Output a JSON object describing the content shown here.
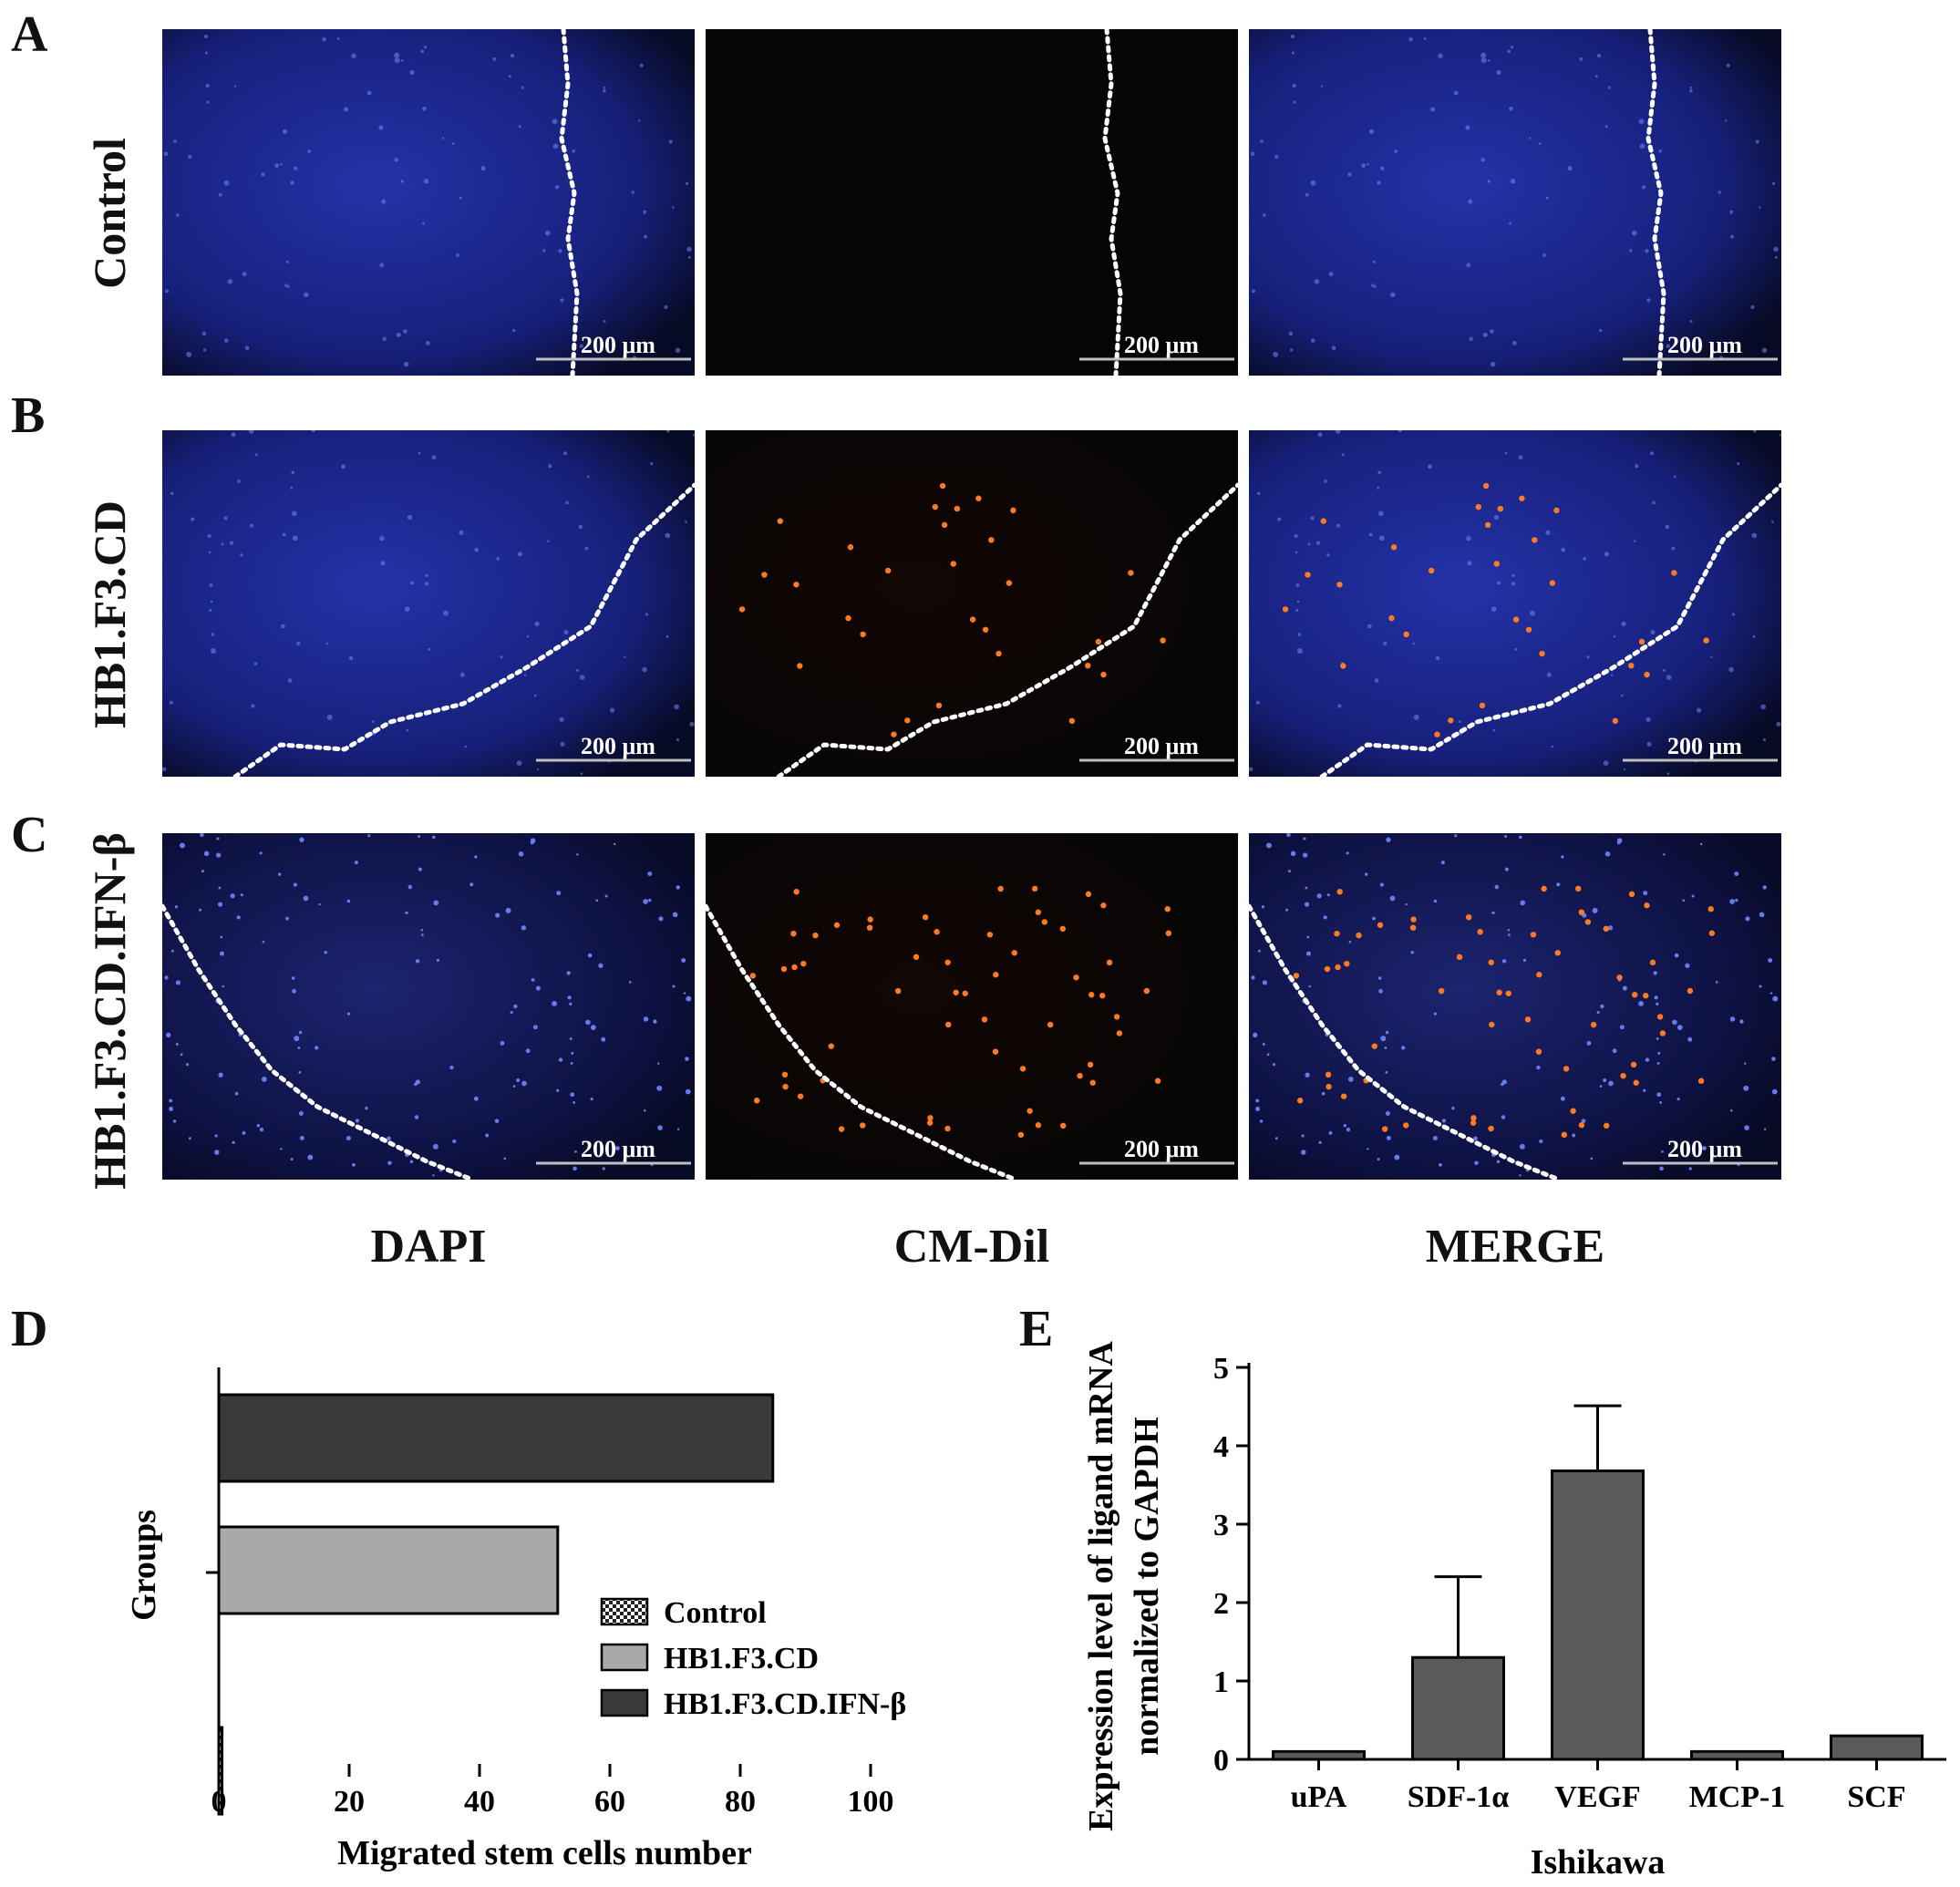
{
  "panels": {
    "A": "A",
    "B": "B",
    "C": "C",
    "D": "D",
    "E": "E"
  },
  "rows": [
    {
      "label": "Control",
      "cells": 0
    },
    {
      "label": "HB1.F3.CD",
      "cells": 30
    },
    {
      "label": "HB1.F3.CD.IFN-β",
      "cells": 60
    }
  ],
  "columns": [
    "DAPI",
    "CM-Dil",
    "MERGE"
  ],
  "scale_bar": "200 μm",
  "colors": {
    "dapi": "#1a2a9a",
    "dil": "#ff6a1a",
    "bar_dark": "#3a3a3a",
    "bar_light": "#a9a9a9",
    "bar_e": "#5a5a5a"
  },
  "chart_data": [
    {
      "type": "bar",
      "orientation": "horizontal",
      "ylabel": "Groups",
      "xlabel": "Migrated stem cells number",
      "xlim": [
        0,
        100
      ],
      "xticks": [
        "0",
        "20",
        "40",
        "60",
        "80",
        "100"
      ],
      "series": [
        {
          "name": "Control",
          "value": 0.5,
          "pattern": "checker"
        },
        {
          "name": "HB1.F3.CD",
          "value": 52,
          "pattern": "light"
        },
        {
          "name": "HB1.F3.CD.IFN-β",
          "value": 85,
          "pattern": "dark"
        }
      ]
    },
    {
      "type": "bar",
      "categories": [
        "uPA",
        "SDF-1α",
        "VEGF",
        "MCP-1",
        "SCF"
      ],
      "values": [
        0.1,
        1.3,
        3.68,
        0.1,
        0.3
      ],
      "errors": [
        0,
        1.03,
        0.83,
        0,
        0.03
      ],
      "ylabel_line1": "Expression level of ligand mRNA",
      "ylabel_line2": "normalized to GAPDH",
      "xlabel": "Ishikawa",
      "ylim": [
        0,
        5
      ],
      "yticks": [
        "0",
        "1",
        "2",
        "3",
        "4",
        "5"
      ]
    }
  ]
}
